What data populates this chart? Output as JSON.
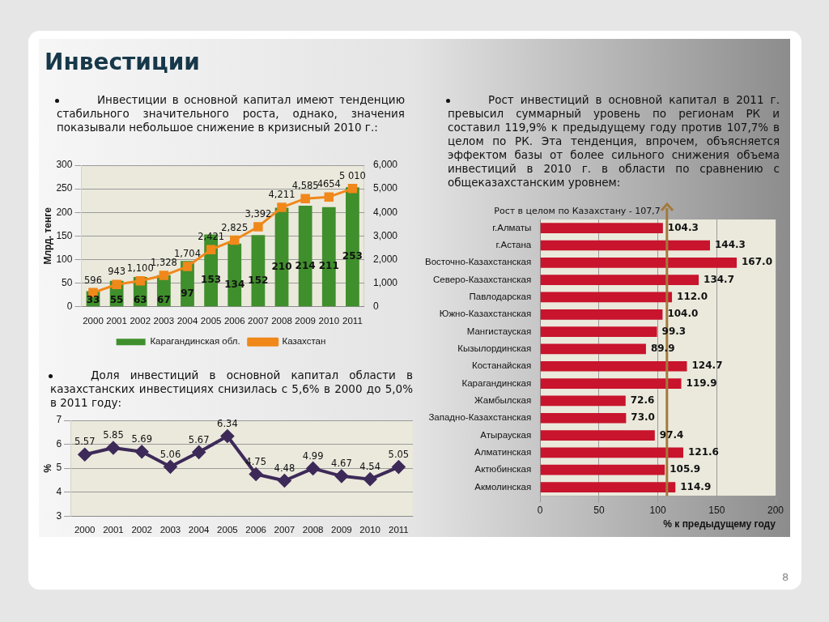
{
  "chart_data": [
    {
      "type": "other",
      "title": "Инвестиции",
      "annotations": [
        "8"
      ]
    },
    {
      "type": "bar",
      "subtitle": "Инвестиции в основной капитал имеют тенденцию стабильного значительного роста, однако, значения показывали небольшое снижение в кризисный 2010 г.:",
      "ylabel": "Млрд. тенге",
      "categories": [
        "2000",
        "2001",
        "2002",
        "2003",
        "2004",
        "2005",
        "2006",
        "2007",
        "2008",
        "2009",
        "2010",
        "2011"
      ],
      "series": [
        {
          "name": "Карагандинская обл.",
          "color": "#3f8f2c",
          "values": [
            33,
            55,
            63,
            67,
            97,
            153,
            134,
            152,
            210,
            214,
            211,
            253
          ],
          "value_labels": [
            "33",
            "55",
            "63",
            "67",
            "97",
            "153",
            "134",
            "152",
            "210",
            "214",
            "211",
            "253"
          ]
        },
        {
          "name": "Казахстан",
          "type": "line",
          "axis": "y2",
          "color": "#f0881a",
          "values": [
            596,
            943,
            1100,
            1328,
            1704,
            2421,
            2825,
            3392,
            4211,
            4585,
            4654,
            5010
          ],
          "value_labels": [
            "596",
            "943",
            "1,100",
            "1,328",
            "1,704",
            "2,421",
            "2,825",
            "3,392",
            "4,211",
            "4,585",
            "4654",
            "5 010"
          ]
        }
      ],
      "ylim": [
        0,
        300
      ],
      "yticks": [
        0,
        50,
        100,
        150,
        200,
        250,
        300
      ],
      "y2lim": [
        0,
        6000
      ],
      "y2ticks": [
        0,
        {
          "value": 1000,
          "label": "1,000"
        },
        {
          "value": 2000,
          "label": "2,000"
        },
        {
          "value": 3000,
          "label": "3,000"
        },
        {
          "value": 4000,
          "label": "4,000"
        },
        {
          "value": 5000,
          "label": "5,000"
        },
        {
          "value": 6000,
          "label": "6,000"
        }
      ],
      "grid": "y",
      "legend": "bottom",
      "marker": "square"
    },
    {
      "type": "line",
      "subtitle": "Доля инвестиций в основной капитал области в казахстанских инвестициях снизилась с 5,6% в 2000 до 5,0% в 2011 году:",
      "ylabel": "%",
      "categories": [
        "2000",
        "2001",
        "2002",
        "2003",
        "2004",
        "2005",
        "2006",
        "2007",
        "2008",
        "2009",
        "2010",
        "2011"
      ],
      "values": [
        5.57,
        5.85,
        5.69,
        5.06,
        5.67,
        6.34,
        4.75,
        4.48,
        4.99,
        4.67,
        4.54,
        5.05
      ],
      "color": "#3d2a58",
      "value_labels": [
        "5.57",
        "5.85",
        "5.69",
        "5.06",
        "5.67",
        "6.34",
        "4.75",
        "4.48",
        "4.99",
        "4.67",
        "4.54",
        "5.05"
      ],
      "ylim": [
        3,
        7
      ],
      "yticks": [
        3,
        4,
        5,
        6,
        7
      ],
      "grid": "y",
      "marker": "diamond"
    },
    {
      "type": "bar",
      "orientation": "horizontal",
      "subtitle": "Рост инвестиций в основной капитал в 2011 г. превысил суммарный уровень по регионам РК и составил 119,9% к предыдущему году против 107,7% в целом по РК. Эта тенденция, впрочем, объясняется эффектом базы от более сильного снижения объема инвестиций в 2010 г. в области по сравнению с общеказахстанским уровнем:",
      "xlabel": "% к предыдущему году",
      "categories": [
        "г.Алматы",
        "г.Астана",
        "Восточно-Казахстанская",
        "Северо-Казахстанская",
        "Павлодарская",
        "Южно-Казахстанская",
        "Мангистауская",
        "Кызылординская",
        "Костанайская",
        "Карагандинская",
        "Жамбылская",
        "Западно-Казахстанская",
        "Атырауская",
        "Алматинская",
        "Актюбинская",
        "Акмолинская"
      ],
      "values": [
        104.3,
        144.3,
        167.0,
        134.7,
        112.0,
        104.0,
        99.3,
        89.9,
        124.7,
        119.9,
        72.6,
        73.0,
        97.4,
        121.6,
        105.9,
        114.9
      ],
      "color": "#c8142c",
      "value_labels": [
        "104.3",
        "144.3",
        "167.0",
        "134.7",
        "112.0",
        "104.0",
        "99.3",
        "89.9",
        "124.7",
        "119.9",
        "72.6",
        "73.0",
        "97.4",
        "121.6",
        "105.9",
        "114.9"
      ],
      "xlim": [
        0,
        200
      ],
      "xticks": [
        0,
        50,
        100,
        150,
        200
      ],
      "grid": "x",
      "ref_lines": [
        {
          "axis": "x",
          "value": 107.7,
          "label": "Рост в целом по Казахстану - 107,7",
          "color": "#a37a3c"
        }
      ]
    }
  ]
}
